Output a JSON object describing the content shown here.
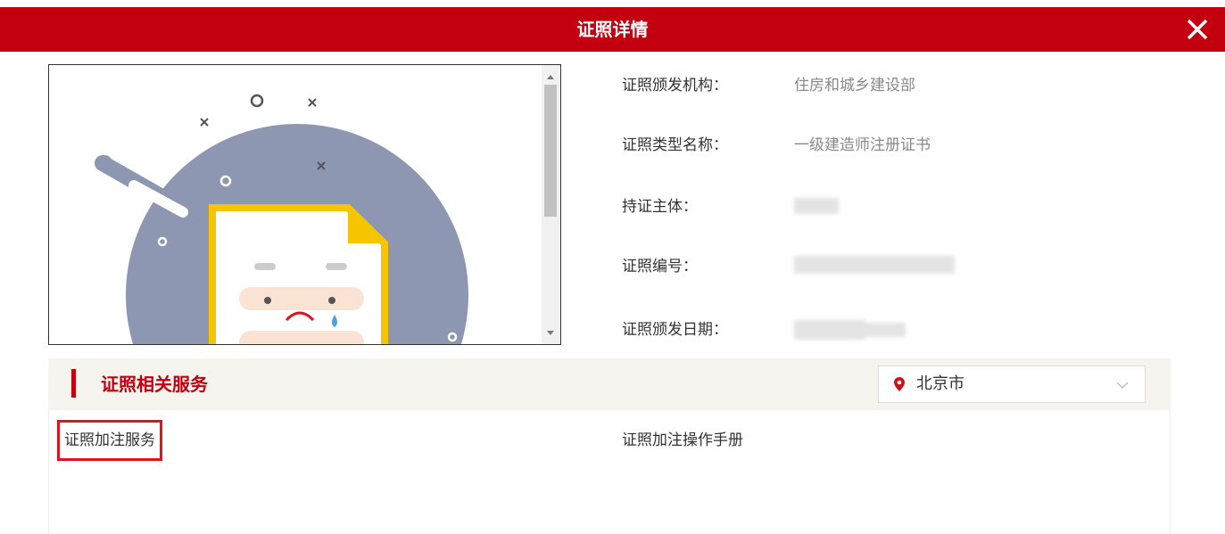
{
  "header": {
    "title": "证照详情"
  },
  "details": {
    "fields": [
      {
        "label": "证照颁发机构：",
        "value": "住房和城乡建设部"
      },
      {
        "label": "证照类型名称：",
        "value": "一级建造师注册证书"
      },
      {
        "label": "持证主体："
      },
      {
        "label": "证照编号："
      },
      {
        "label": "证照颁发日期："
      }
    ]
  },
  "services": {
    "title": "证照相关服务",
    "location": "北京市",
    "items": [
      "证照加注服务",
      "证照加注操作手册"
    ]
  }
}
